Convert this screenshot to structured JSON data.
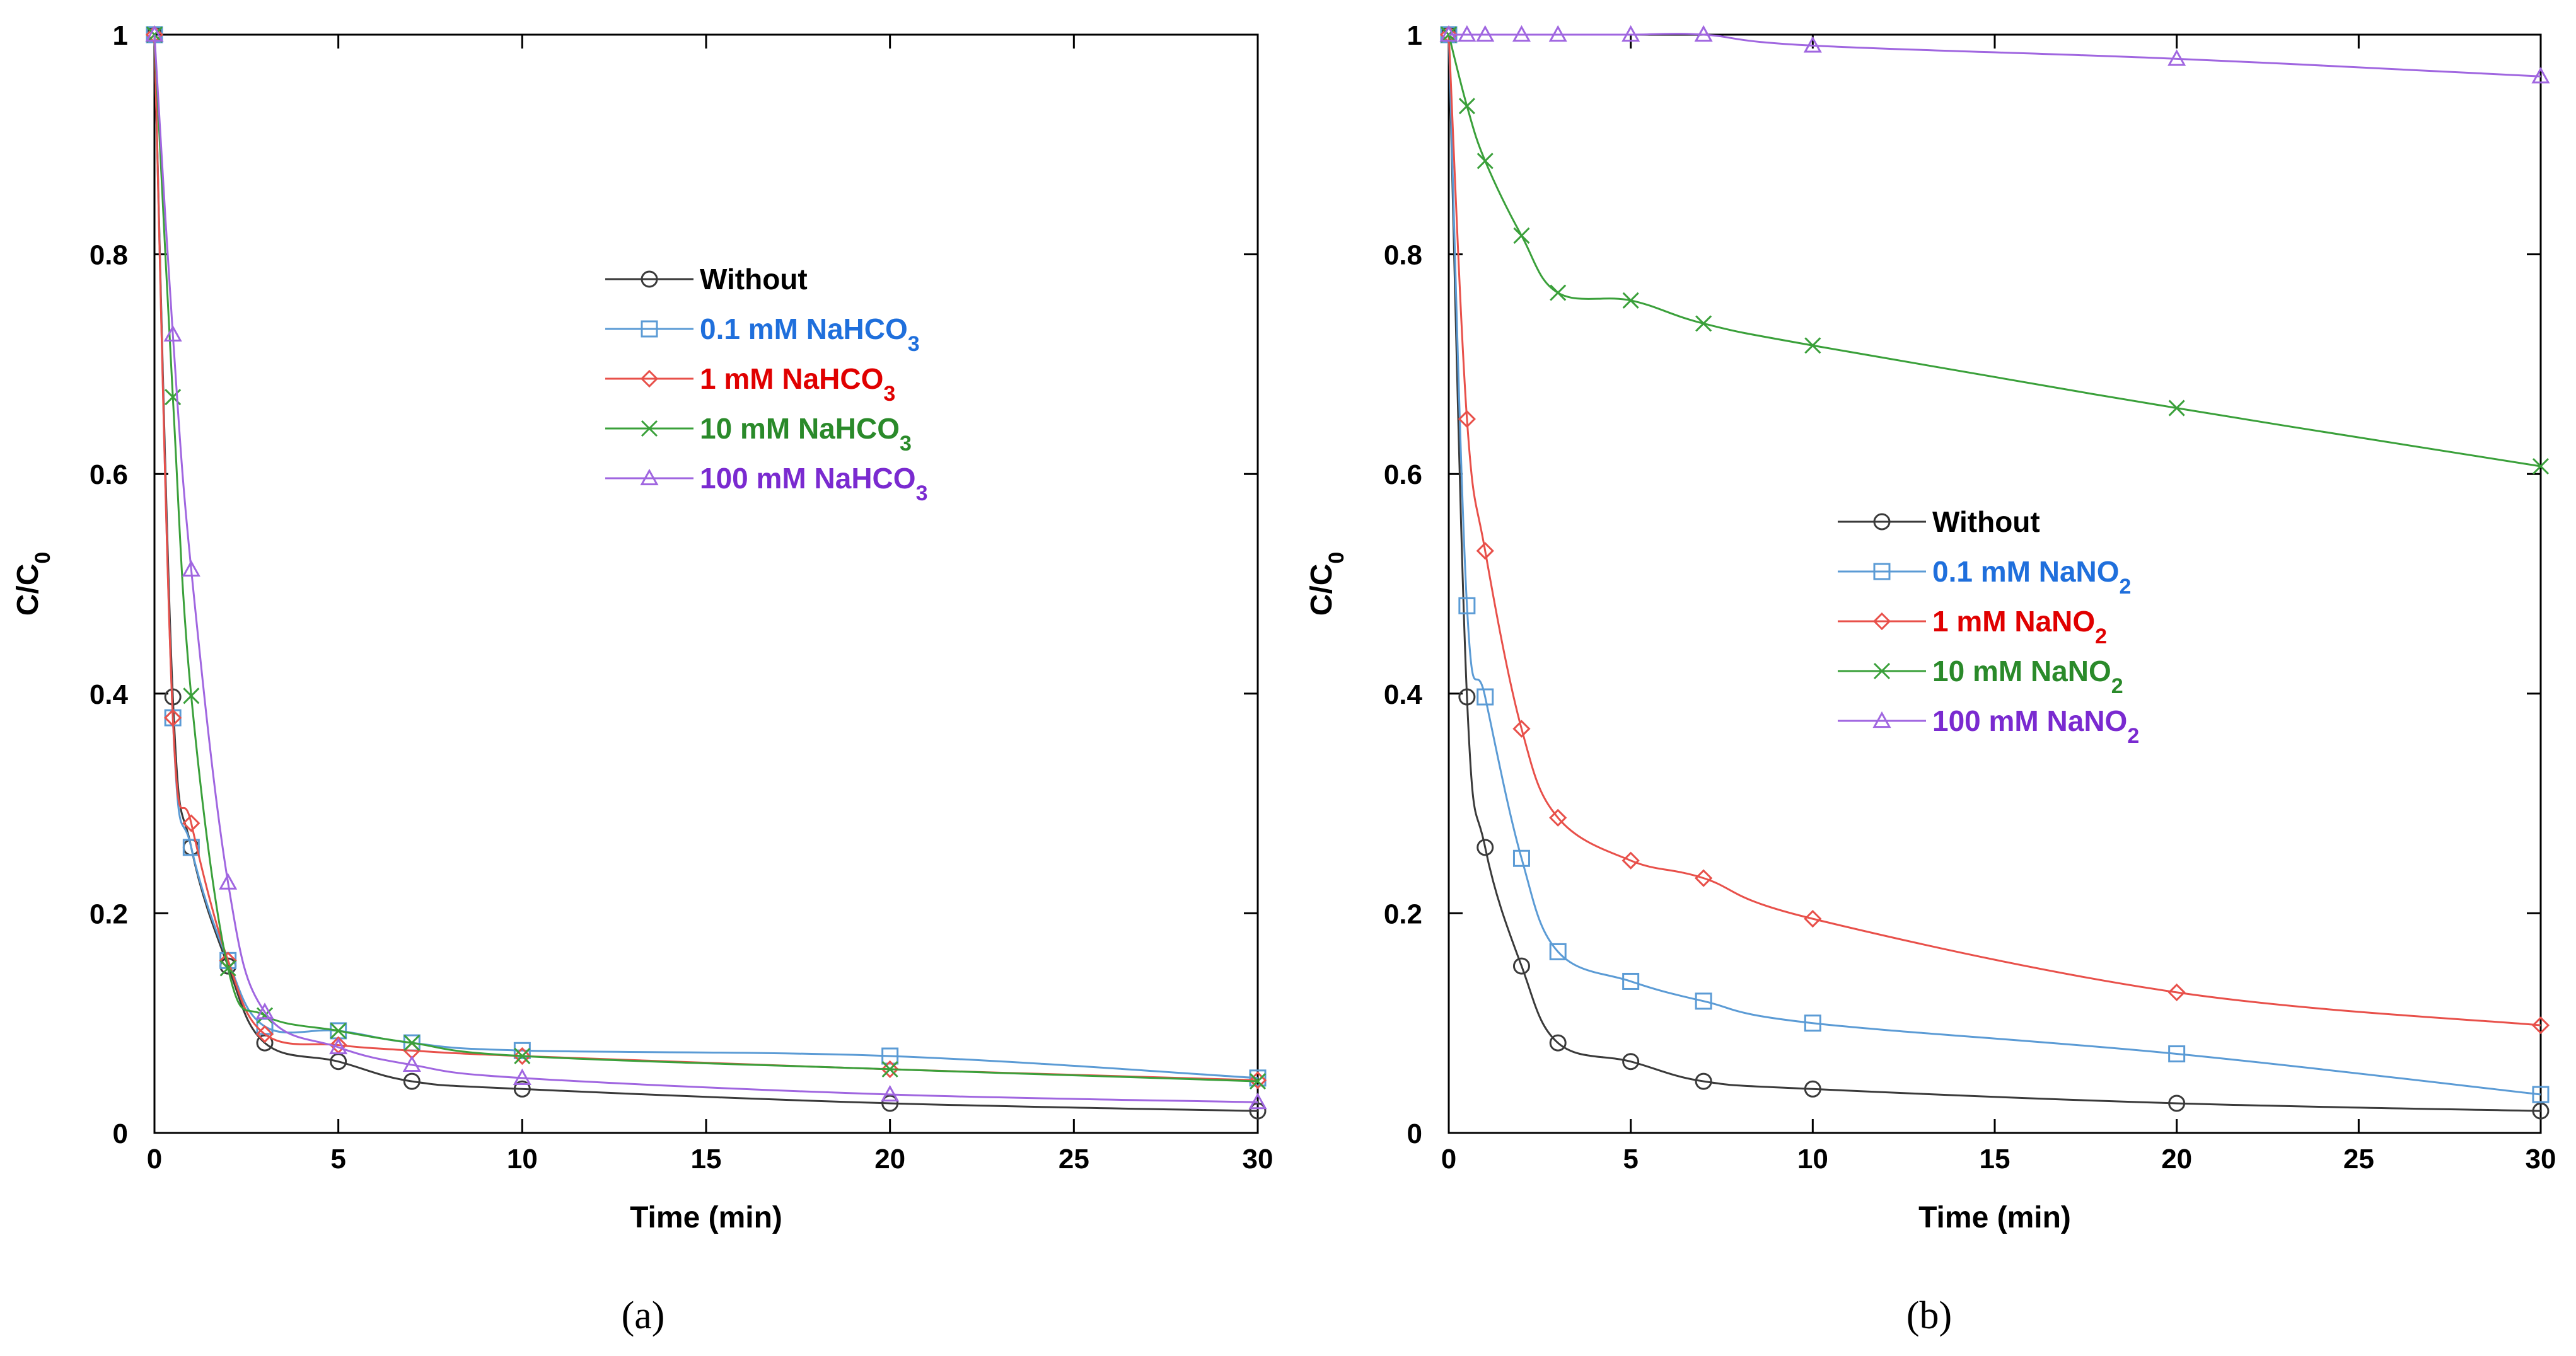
{
  "chart_data": [
    {
      "type": "line",
      "panel_label": "(a)",
      "xlabel": "Time (min)",
      "ylabel": {
        "main": "C/C",
        "sub": "0"
      },
      "xlim": [
        0,
        30
      ],
      "ylim": [
        0,
        1
      ],
      "xticks": [
        0,
        5,
        10,
        15,
        20,
        25,
        30
      ],
      "yticks": [
        0,
        0.2,
        0.4,
        0.6,
        0.8,
        1
      ],
      "ytick_labels": [
        "0",
        "0.2",
        "0.4",
        "0.6",
        "0.8",
        "1"
      ],
      "legend_position": "upper-middle",
      "series": [
        {
          "name": "Without",
          "label_main": "Without",
          "label_sub": "",
          "color": "#3a3a3a",
          "text_color": "#000000",
          "marker": "circle",
          "x": [
            0,
            0.5,
            1,
            2,
            3,
            5,
            7,
            10,
            20,
            30
          ],
          "y": [
            1.0,
            0.397,
            0.26,
            0.152,
            0.082,
            0.065,
            0.047,
            0.04,
            0.027,
            0.02
          ]
        },
        {
          "name": "0.1 mM NaHCO3",
          "label_main": "0.1 mM NaHCO",
          "label_sub": "3",
          "color": "#5b9bd5",
          "text_color": "#1f6fdc",
          "marker": "square",
          "x": [
            0,
            0.5,
            1,
            2,
            3,
            5,
            7,
            10,
            20,
            30
          ],
          "y": [
            1.0,
            0.378,
            0.26,
            0.157,
            0.097,
            0.093,
            0.082,
            0.075,
            0.07,
            0.05
          ]
        },
        {
          "name": "1 mM NaHCO3",
          "label_main": "1 mM NaHCO",
          "label_sub": "3",
          "color": "#e8504a",
          "text_color": "#e00000",
          "marker": "diamond",
          "x": [
            0,
            0.5,
            1,
            2,
            3,
            5,
            7,
            10,
            20,
            30
          ],
          "y": [
            1.0,
            0.378,
            0.282,
            0.157,
            0.09,
            0.08,
            0.075,
            0.07,
            0.058,
            0.048
          ]
        },
        {
          "name": "10 mM NaHCO3",
          "label_main": "10 mM NaHCO",
          "label_sub": "3",
          "color": "#3aa03a",
          "text_color": "#2a8a2a",
          "marker": "cross",
          "x": [
            0,
            0.5,
            1,
            2,
            3,
            5,
            7,
            10,
            20,
            30
          ],
          "y": [
            1.0,
            0.67,
            0.398,
            0.15,
            0.107,
            0.093,
            0.082,
            0.07,
            0.058,
            0.047
          ]
        },
        {
          "name": "100 mM NaHCO3",
          "label_main": "100 mM NaHCO",
          "label_sub": "3",
          "color": "#a066e0",
          "text_color": "#7a2ad0",
          "marker": "triangle",
          "x": [
            0,
            0.5,
            1,
            2,
            3,
            5,
            7,
            10,
            20,
            30
          ],
          "y": [
            1.0,
            0.727,
            0.513,
            0.228,
            0.11,
            0.078,
            0.062,
            0.05,
            0.035,
            0.028
          ]
        }
      ]
    },
    {
      "type": "line",
      "panel_label": "(b)",
      "xlabel": "Time (min)",
      "ylabel": {
        "main": "C/C",
        "sub": "0"
      },
      "xlim": [
        0,
        30
      ],
      "ylim": [
        0,
        1
      ],
      "xticks": [
        0,
        5,
        10,
        15,
        20,
        25,
        30
      ],
      "yticks": [
        0,
        0.2,
        0.4,
        0.6,
        0.8,
        1
      ],
      "ytick_labels": [
        "0",
        "0.2",
        "0.4",
        "0.6",
        "0.8",
        "1"
      ],
      "legend_position": "middle-left",
      "series": [
        {
          "name": "Without",
          "label_main": "Without",
          "label_sub": "",
          "color": "#3a3a3a",
          "text_color": "#000000",
          "marker": "circle",
          "x": [
            0,
            0.5,
            1,
            2,
            3,
            5,
            7,
            10,
            20,
            30
          ],
          "y": [
            1.0,
            0.397,
            0.26,
            0.152,
            0.082,
            0.065,
            0.047,
            0.04,
            0.027,
            0.02
          ]
        },
        {
          "name": "0.1 mM NaNO2",
          "label_main": "0.1 mM NaNO",
          "label_sub": "2",
          "color": "#5b9bd5",
          "text_color": "#1f6fdc",
          "marker": "square",
          "x": [
            0,
            0.5,
            1,
            2,
            3,
            5,
            7,
            10,
            20,
            30
          ],
          "y": [
            1.0,
            0.48,
            0.397,
            0.25,
            0.165,
            0.138,
            0.12,
            0.1,
            0.072,
            0.035
          ]
        },
        {
          "name": "1 mM NaNO2",
          "label_main": "1 mM NaNO",
          "label_sub": "2",
          "color": "#e8504a",
          "text_color": "#e00000",
          "marker": "diamond",
          "x": [
            0,
            0.5,
            1,
            2,
            3,
            5,
            7,
            10,
            20,
            30
          ],
          "y": [
            1.0,
            0.65,
            0.53,
            0.368,
            0.287,
            0.248,
            0.232,
            0.195,
            0.128,
            0.098
          ]
        },
        {
          "name": "10 mM NaNO2",
          "label_main": "10 mM NaNO",
          "label_sub": "2",
          "color": "#3aa03a",
          "text_color": "#2a8a2a",
          "marker": "cross",
          "x": [
            0,
            0.5,
            1,
            2,
            3,
            5,
            7,
            10,
            20,
            30
          ],
          "y": [
            1.0,
            0.935,
            0.885,
            0.817,
            0.765,
            0.758,
            0.737,
            0.717,
            0.66,
            0.607
          ]
        },
        {
          "name": "100 mM NaNO2",
          "label_main": "100 mM NaNO",
          "label_sub": "2",
          "color": "#a066e0",
          "text_color": "#7a2ad0",
          "marker": "triangle",
          "x": [
            0,
            0.5,
            1,
            2,
            3,
            5,
            7,
            10,
            20,
            30
          ],
          "y": [
            1.0,
            1.0,
            1.0,
            1.0,
            1.0,
            1.0,
            1.0,
            0.99,
            0.978,
            0.962
          ]
        }
      ]
    }
  ]
}
